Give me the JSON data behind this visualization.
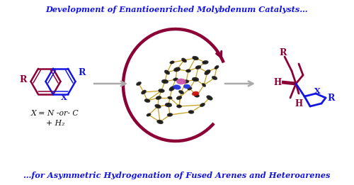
{
  "title_top": "Development of Enantioenriched Molybdenum Catalysts…",
  "title_bottom": "…for Asymmetric Hydrogenation of Fused Arenes and Heteroarenes",
  "text_xeq": "X = N -or- C",
  "text_h2": "+ H₂",
  "color_blue": "#1515e0",
  "color_dark_red": "#8b0035",
  "color_arrow_red": "#8b0035",
  "color_gray": "#aaaaaa",
  "color_black": "#111111",
  "color_gold": "#c8a020",
  "bg_color": "#ffffff",
  "fig_w": 5.0,
  "fig_h": 2.61,
  "dpi": 100,
  "xlim": [
    0,
    500
  ],
  "ylim": [
    0,
    261
  ]
}
